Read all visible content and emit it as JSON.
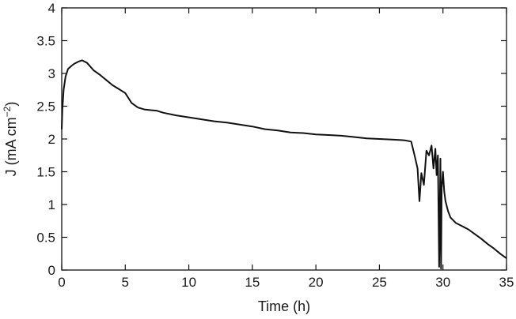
{
  "chart_data": {
    "type": "line",
    "title": "",
    "xlabel": "Time (h)",
    "ylabel_parts": {
      "base": "J (mA cm",
      "sup": "−2",
      "close": ")"
    },
    "xlim": [
      0,
      35
    ],
    "ylim": [
      0,
      4
    ],
    "xticks": [
      0,
      5,
      10,
      15,
      20,
      25,
      30,
      35
    ],
    "xtick_labels": [
      "0",
      "5",
      "10",
      "15",
      "20",
      "25",
      "30",
      "35"
    ],
    "yticks": [
      0,
      0.5,
      1,
      1.5,
      2,
      2.5,
      3,
      3.5,
      4
    ],
    "ytick_labels": [
      "0",
      "0.5",
      "1",
      "1.5",
      "2",
      "2.5",
      "3",
      "3.5",
      "4"
    ],
    "grid": false,
    "legend": "none",
    "line_color": "#111111",
    "series": [
      {
        "x": [
          0,
          0.05,
          0.15,
          0.3,
          0.5,
          0.8,
          1.0,
          1.3,
          1.6,
          2.0,
          2.5,
          3.0,
          3.5,
          4.0,
          4.5,
          5.0,
          5.5,
          6.0,
          6.5,
          7.0,
          7.5,
          8.0,
          9.0,
          10.0,
          11.0,
          12.0,
          13.0,
          14.0,
          15.0,
          16.0,
          17.0,
          18.0,
          19.0,
          20.0,
          21.0,
          22.0,
          23.0,
          24.0,
          25.0,
          26.0,
          27.0,
          27.5,
          27.8,
          28.0,
          28.15,
          28.3,
          28.5,
          28.7,
          28.9,
          29.1,
          29.25,
          29.4,
          29.5,
          29.6,
          29.7,
          29.8,
          29.85,
          29.9,
          30.0,
          30.1,
          30.2,
          30.4,
          30.6,
          30.8,
          31.0,
          31.5,
          32.0,
          32.5,
          33.0,
          33.5,
          34.0,
          34.5,
          35.0
        ],
        "y": [
          2.15,
          2.45,
          2.75,
          2.95,
          3.07,
          3.12,
          3.15,
          3.18,
          3.2,
          3.16,
          3.05,
          2.98,
          2.9,
          2.82,
          2.76,
          2.7,
          2.55,
          2.48,
          2.45,
          2.44,
          2.43,
          2.4,
          2.36,
          2.33,
          2.3,
          2.27,
          2.25,
          2.22,
          2.19,
          2.15,
          2.13,
          2.1,
          2.09,
          2.07,
          2.06,
          2.05,
          2.03,
          2.01,
          2.0,
          1.99,
          1.98,
          1.96,
          1.72,
          1.55,
          1.05,
          1.48,
          1.3,
          1.82,
          1.75,
          1.9,
          1.55,
          1.85,
          1.45,
          1.75,
          0.05,
          1.7,
          0.02,
          1.25,
          1.5,
          1.2,
          1.05,
          0.9,
          0.8,
          0.76,
          0.72,
          0.67,
          0.62,
          0.55,
          0.48,
          0.4,
          0.33,
          0.25,
          0.18
        ]
      }
    ]
  }
}
